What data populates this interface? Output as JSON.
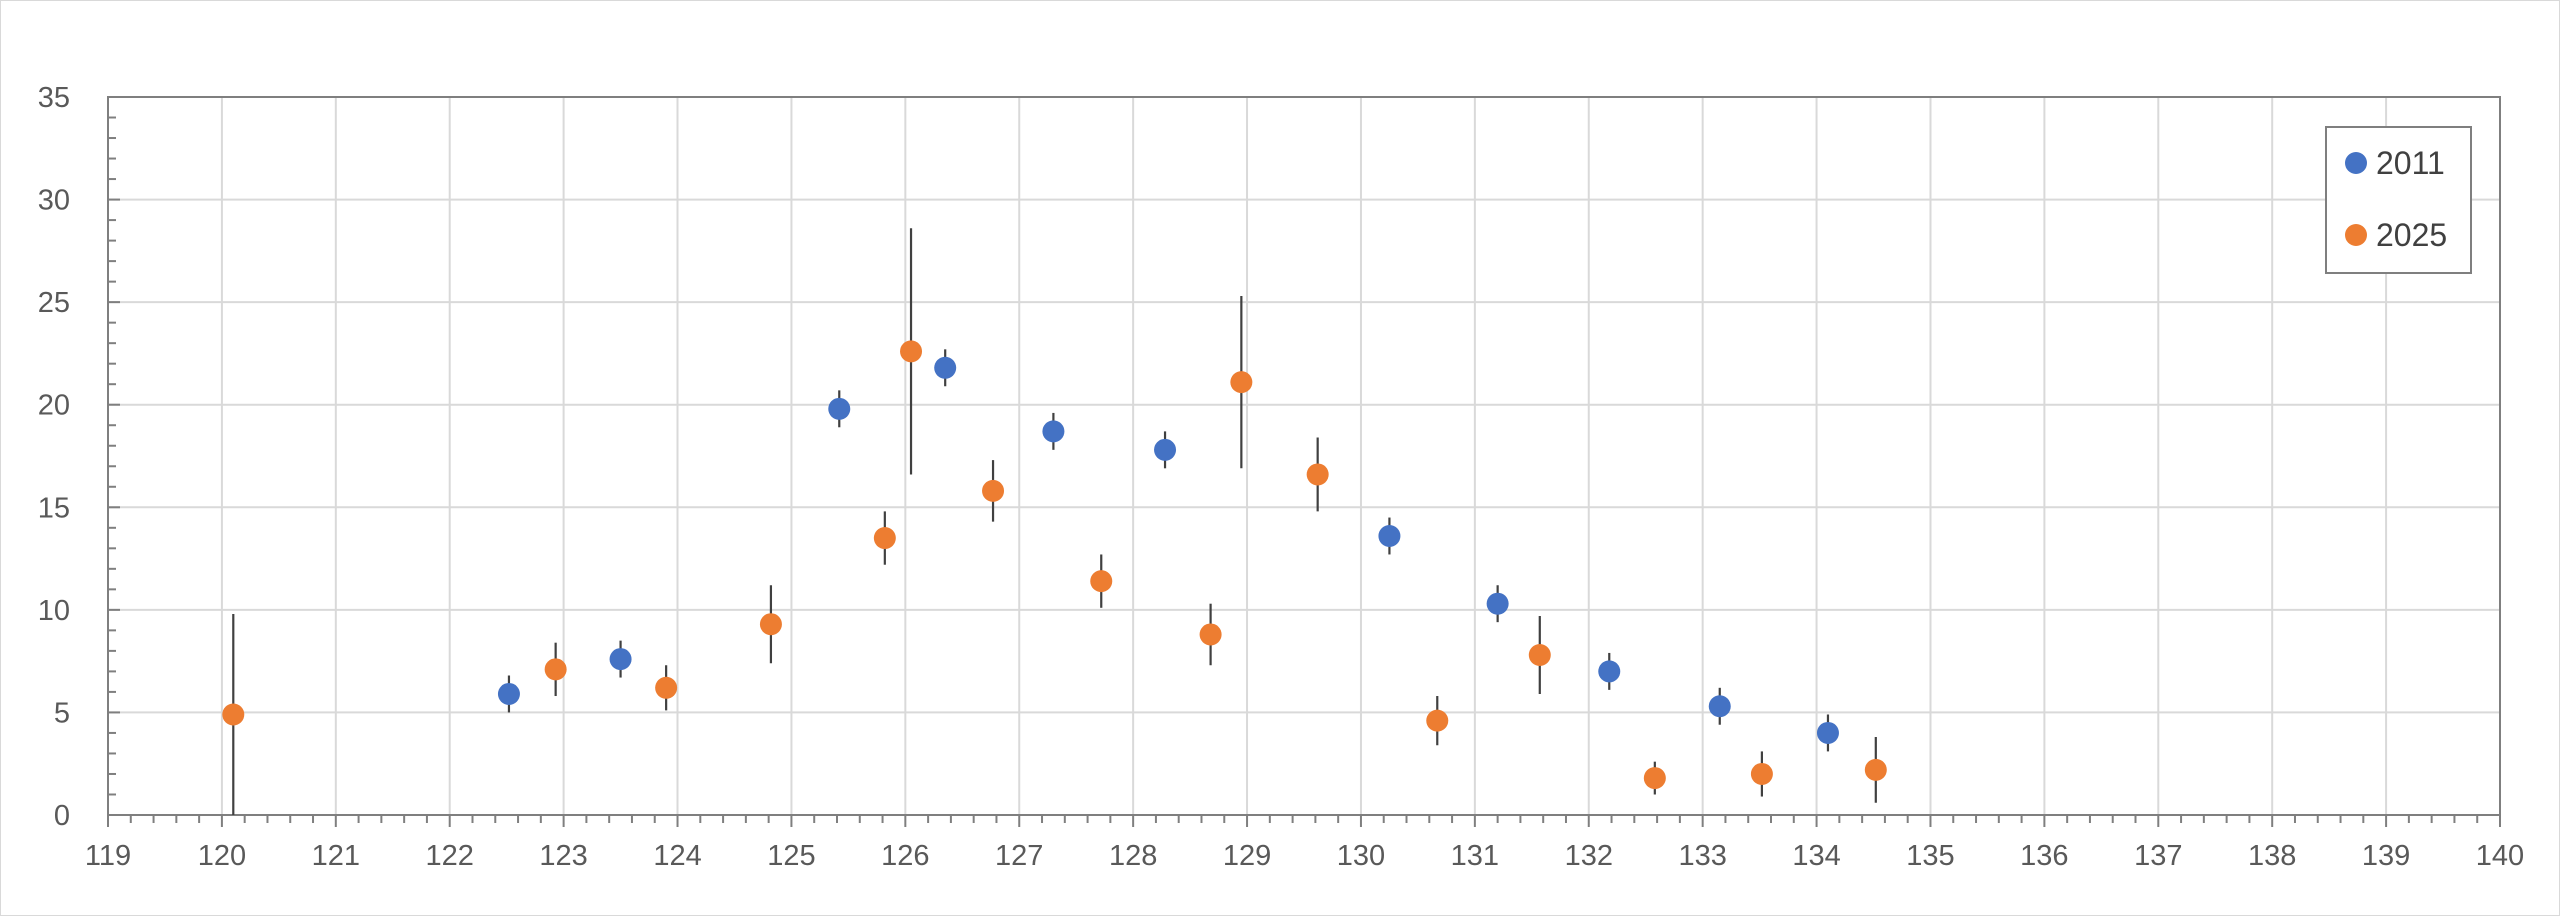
{
  "chart_data": {
    "type": "scatter",
    "title": "",
    "xlabel": "",
    "ylabel": "",
    "xlim": [
      119,
      140
    ],
    "ylim": [
      0,
      35
    ],
    "x_major_step": 1,
    "y_major_step": 5,
    "x_ticks": [
      "119",
      "120",
      "121",
      "122",
      "123",
      "124",
      "125",
      "126",
      "127",
      "128",
      "129",
      "130",
      "131",
      "132",
      "133",
      "134",
      "135",
      "136",
      "137",
      "138",
      "139",
      "140"
    ],
    "y_ticks": [
      "0",
      "5",
      "10",
      "15",
      "20",
      "25",
      "30",
      "35"
    ],
    "grid": true,
    "error_bars": "vertical",
    "legend_position": "top-right",
    "series": [
      {
        "name": "2011",
        "color": "#4472C4",
        "points": [
          {
            "x": 122.52,
            "y": 5.9,
            "err": 0.9
          },
          {
            "x": 123.5,
            "y": 7.6,
            "err": 0.9
          },
          {
            "x": 125.42,
            "y": 19.8,
            "err": 0.9
          },
          {
            "x": 126.35,
            "y": 21.8,
            "err": 0.9
          },
          {
            "x": 127.3,
            "y": 18.7,
            "err": 0.9
          },
          {
            "x": 128.28,
            "y": 17.8,
            "err": 0.9
          },
          {
            "x": 130.25,
            "y": 13.6,
            "err": 0.9
          },
          {
            "x": 131.2,
            "y": 10.3,
            "err": 0.9
          },
          {
            "x": 132.18,
            "y": 7.0,
            "err": 0.9
          },
          {
            "x": 133.15,
            "y": 5.3,
            "err": 0.9
          },
          {
            "x": 134.1,
            "y": 4.0,
            "err": 0.9
          }
        ]
      },
      {
        "name": "2025",
        "color": "#ED7D31",
        "points": [
          {
            "x": 120.1,
            "y": 4.9,
            "err": 4.9
          },
          {
            "x": 122.93,
            "y": 7.1,
            "err": 1.3
          },
          {
            "x": 123.9,
            "y": 6.2,
            "err": 1.1
          },
          {
            "x": 124.82,
            "y": 9.3,
            "err": 1.9
          },
          {
            "x": 125.82,
            "y": 13.5,
            "err": 1.3
          },
          {
            "x": 126.05,
            "y": 22.6,
            "err": 6.0
          },
          {
            "x": 126.77,
            "y": 15.8,
            "err": 1.5
          },
          {
            "x": 127.72,
            "y": 11.4,
            "err": 1.3
          },
          {
            "x": 128.68,
            "y": 8.8,
            "err": 1.5
          },
          {
            "x": 128.95,
            "y": 21.1,
            "err": 4.2
          },
          {
            "x": 129.62,
            "y": 16.6,
            "err": 1.8
          },
          {
            "x": 130.67,
            "y": 4.6,
            "err": 1.2
          },
          {
            "x": 131.57,
            "y": 7.8,
            "err": 1.9
          },
          {
            "x": 132.58,
            "y": 1.8,
            "err": 0.8
          },
          {
            "x": 133.52,
            "y": 2.0,
            "err": 1.1
          },
          {
            "x": 134.52,
            "y": 2.2,
            "err": 1.6
          }
        ]
      }
    ]
  }
}
